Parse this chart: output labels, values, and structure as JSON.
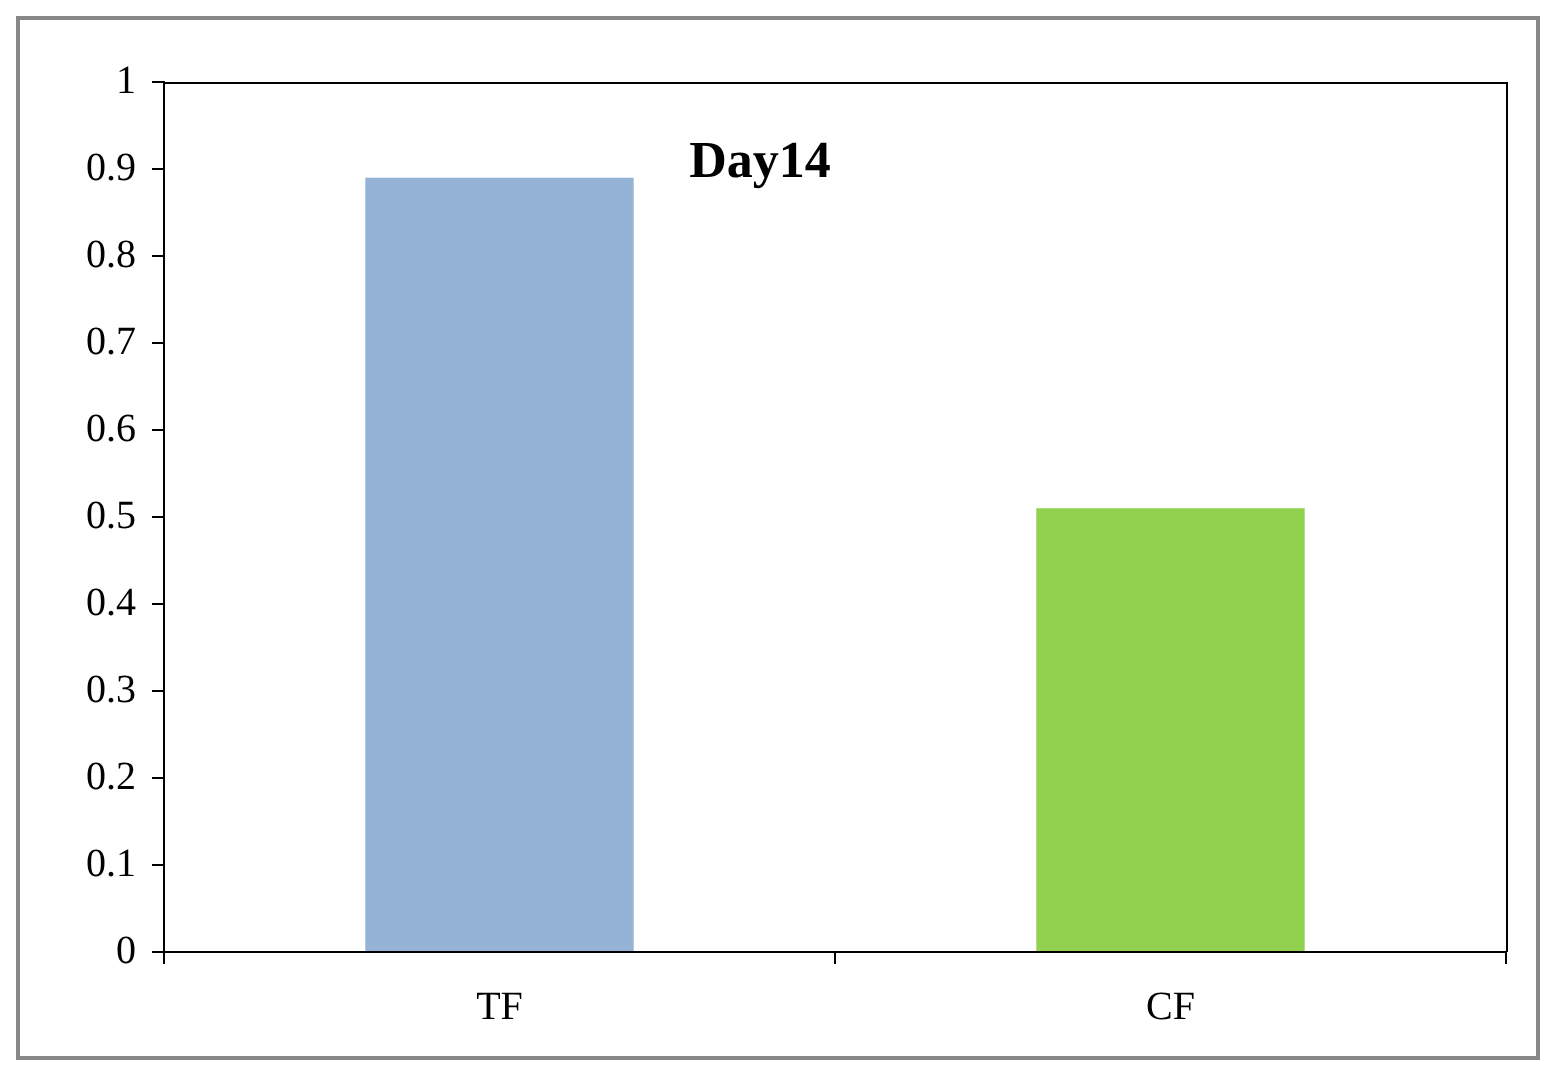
{
  "chart_data": {
    "type": "bar",
    "title": "Day14",
    "categories": [
      "TF",
      "CF"
    ],
    "values": [
      0.89,
      0.51
    ],
    "colors": [
      "#95b3d7",
      "#92d050"
    ],
    "ylim": [
      0,
      1
    ],
    "yticks": [
      0,
      0.1,
      0.2,
      0.3,
      0.4,
      0.5,
      0.6,
      0.7,
      0.8,
      0.9,
      1
    ],
    "grid": false,
    "legend": false
  }
}
